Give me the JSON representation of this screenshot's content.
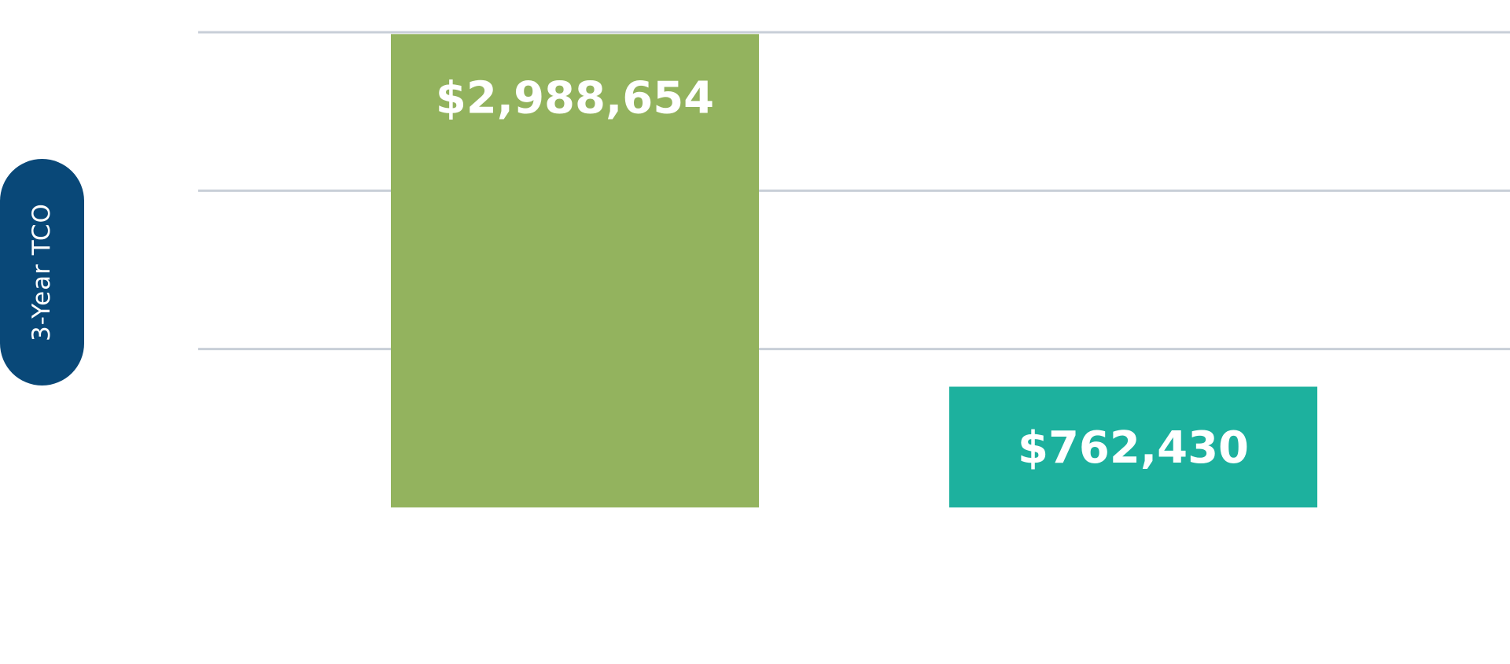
{
  "chart_data": {
    "type": "bar",
    "title": "",
    "xlabel": "",
    "ylabel": "3-Year TCO",
    "categories": [
      "",
      ""
    ],
    "values": [
      2988654,
      762430
    ],
    "value_labels": [
      "$2,988,654",
      "$762,430"
    ],
    "ylim": [
      0,
      3100000
    ],
    "gridlines": [
      1000000,
      2000000,
      3000000
    ],
    "grid": true,
    "legend": "none"
  },
  "colors": {
    "bars": [
      "#93b35e",
      "#1db19e"
    ],
    "ylabel_pill": "#094878",
    "grid": "#c8cfd8",
    "value_label": "#ffffff"
  }
}
